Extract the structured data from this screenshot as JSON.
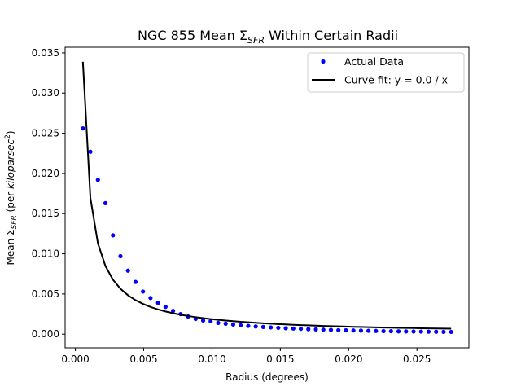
{
  "chart_data": {
    "type": "scatter",
    "title": {
      "prefix": "NGC 855 Mean Σ",
      "sub": "SFR",
      "suffix": " Within Certain Radii"
    },
    "xlabel": "Radius (degrees)",
    "ylabel": {
      "prefix": "Mean Σ",
      "sub": "SFR",
      "mid": " (per ",
      "unit": "kiloparsec",
      "sup": "2",
      "suffix": ")"
    },
    "xlim": [
      -0.00075,
      0.0288
    ],
    "ylim": [
      -0.0017,
      0.0357
    ],
    "xticks": [
      0.0,
      0.005,
      0.01,
      0.015,
      0.02,
      0.025
    ],
    "xtick_labels": [
      "0.000",
      "0.005",
      "0.010",
      "0.015",
      "0.020",
      "0.025"
    ],
    "yticks": [
      0.0,
      0.005,
      0.01,
      0.015,
      0.02,
      0.025,
      0.03,
      0.035
    ],
    "ytick_labels": [
      "0.000",
      "0.005",
      "0.010",
      "0.015",
      "0.020",
      "0.025",
      "0.030",
      "0.035"
    ],
    "grid": false,
    "legend_position": "top-right",
    "series": [
      {
        "name": "Actual Data",
        "style": "markers",
        "color": "#0000ff",
        "x": [
          0.00055,
          0.0011,
          0.00165,
          0.0022,
          0.00275,
          0.0033,
          0.00385,
          0.0044,
          0.00495,
          0.0055,
          0.00605,
          0.0066,
          0.00715,
          0.0077,
          0.00825,
          0.0088,
          0.00935,
          0.0099,
          0.01045,
          0.011,
          0.01155,
          0.0121,
          0.01265,
          0.0132,
          0.01375,
          0.0143,
          0.01485,
          0.0154,
          0.01595,
          0.0165,
          0.01705,
          0.0176,
          0.01815,
          0.0187,
          0.01925,
          0.0198,
          0.02035,
          0.0209,
          0.02145,
          0.022,
          0.02255,
          0.0231,
          0.02365,
          0.0242,
          0.02475,
          0.0253,
          0.02585,
          0.0264,
          0.02695,
          0.0275
        ],
        "y": [
          0.0256,
          0.0227,
          0.0192,
          0.0163,
          0.0123,
          0.0097,
          0.0079,
          0.0065,
          0.0053,
          0.0045,
          0.0039,
          0.0034,
          0.0029,
          0.0025,
          0.0022,
          0.0019,
          0.0017,
          0.0016,
          0.0014,
          0.0013,
          0.0012,
          0.0011,
          0.00103,
          0.00096,
          0.0009,
          0.00084,
          0.00079,
          0.00074,
          0.0007,
          0.00066,
          0.00062,
          0.00059,
          0.00056,
          0.00053,
          0.0005,
          0.00048,
          0.00046,
          0.00044,
          0.00042,
          0.0004,
          0.00038,
          0.00037,
          0.00035,
          0.00034,
          0.00033,
          0.00032,
          0.00031,
          0.0003,
          0.00029,
          0.00028
        ]
      },
      {
        "name": "Curve fit: y = 0.0 / x",
        "style": "line",
        "color": "#000000",
        "x": [
          0.00055,
          0.0011,
          0.00165,
          0.0022,
          0.00275,
          0.0033,
          0.00385,
          0.0044,
          0.00495,
          0.0055,
          0.00605,
          0.0066,
          0.00715,
          0.0077,
          0.00825,
          0.0088,
          0.00935,
          0.0099,
          0.01045,
          0.011,
          0.01155,
          0.0121,
          0.01265,
          0.0132,
          0.01375,
          0.0143,
          0.01485,
          0.0154,
          0.01595,
          0.0165,
          0.01705,
          0.0176,
          0.01815,
          0.0187,
          0.01925,
          0.0198,
          0.02035,
          0.0209,
          0.02145,
          0.022,
          0.02255,
          0.0231,
          0.02365,
          0.0242,
          0.02475,
          0.0253,
          0.02585,
          0.0264,
          0.02695,
          0.0275
        ],
        "y": [
          0.0339,
          0.01695,
          0.0113,
          0.008475,
          0.00678,
          0.00565,
          0.004843,
          0.004238,
          0.003767,
          0.00339,
          0.003082,
          0.002825,
          0.002608,
          0.002421,
          0.00226,
          0.002119,
          0.001994,
          0.001883,
          0.001784,
          0.001695,
          0.001614,
          0.001541,
          0.001474,
          0.001413,
          0.001356,
          0.001304,
          0.001256,
          0.001211,
          0.001169,
          0.00113,
          0.001094,
          0.001059,
          0.001027,
          0.000997,
          0.000969,
          0.000942,
          0.000916,
          0.000892,
          0.000869,
          0.000848,
          0.000827,
          0.000807,
          0.000788,
          0.00077,
          0.000753,
          0.000737,
          0.000721,
          0.000706,
          0.000692,
          0.000678
        ]
      }
    ]
  }
}
